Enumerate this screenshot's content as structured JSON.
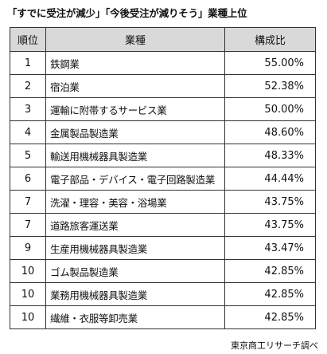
{
  "title": "「すでに受注が減少」「今後受注が減りそう」業種上位",
  "source": "東京商工リサーチ調べ",
  "chart_data": {
    "type": "table",
    "columns": [
      "順位",
      "業種",
      "構成比"
    ],
    "rows": [
      {
        "rank": "1",
        "industry": "鉄鋼業",
        "ratio": "55.00%"
      },
      {
        "rank": "2",
        "industry": "宿泊業",
        "ratio": "52.38%"
      },
      {
        "rank": "3",
        "industry": "運輸に附帯するサービス業",
        "ratio": "50.00%"
      },
      {
        "rank": "4",
        "industry": "金属製品製造業",
        "ratio": "48.60%"
      },
      {
        "rank": "5",
        "industry": "輸送用機械器具製造業",
        "ratio": "48.33%"
      },
      {
        "rank": "6",
        "industry": "電子部品・デバイス・電子回路製造業",
        "ratio": "44.44%"
      },
      {
        "rank": "7",
        "industry": "洗濯・理容・美容・浴場業",
        "ratio": "43.75%"
      },
      {
        "rank": "7",
        "industry": "道路旅客運送業",
        "ratio": "43.75%"
      },
      {
        "rank": "9",
        "industry": "生産用機械器具製造業",
        "ratio": "43.47%"
      },
      {
        "rank": "10",
        "industry": "ゴム製品製造業",
        "ratio": "42.85%"
      },
      {
        "rank": "10",
        "industry": "業務用機械器具製造業",
        "ratio": "42.85%"
      },
      {
        "rank": "10",
        "industry": "繊維・衣服等卸売業",
        "ratio": "42.85%"
      }
    ]
  }
}
